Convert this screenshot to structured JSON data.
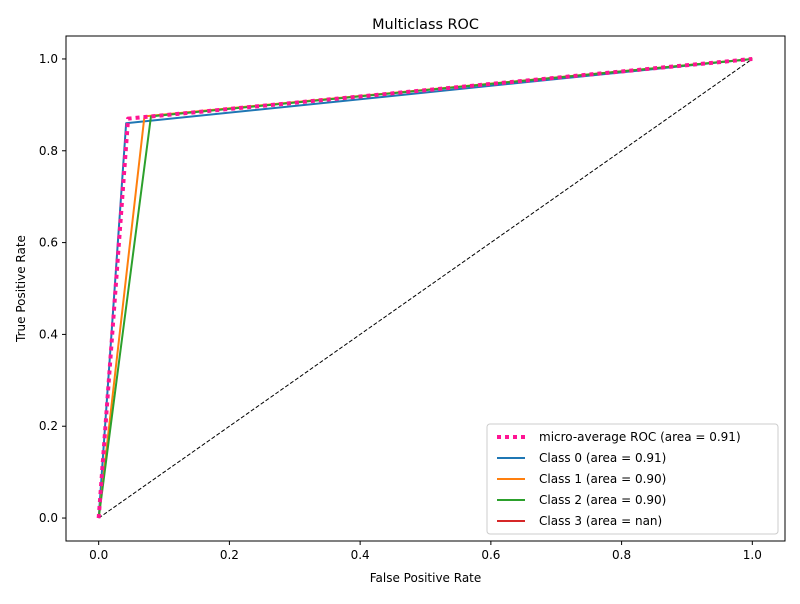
{
  "chart_data": {
    "type": "line",
    "title": "Multiclass ROC",
    "xlabel": "False Positive Rate",
    "ylabel": "True Positive Rate",
    "xlim": [
      -0.05,
      1.05
    ],
    "ylim": [
      -0.05,
      1.05
    ],
    "xticks": [
      "0.0",
      "0.2",
      "0.4",
      "0.6",
      "0.8",
      "1.0"
    ],
    "yticks": [
      "0.0",
      "0.2",
      "0.4",
      "0.6",
      "0.8",
      "1.0"
    ],
    "grid": false,
    "legend_position": "lower right",
    "series": [
      {
        "name": "micro-average ROC (area = 0.91)",
        "color": "#ff1493",
        "style": "dotted",
        "x": [
          0.0,
          0.045,
          1.0
        ],
        "y": [
          0.0,
          0.87,
          1.0
        ]
      },
      {
        "name": "Class 0 (area = 0.91)",
        "color": "#1f77b4",
        "style": "solid",
        "x": [
          0.0,
          0.042,
          1.0
        ],
        "y": [
          0.0,
          0.86,
          1.0
        ]
      },
      {
        "name": "Class 1 (area = 0.90)",
        "color": "#ff7f0e",
        "style": "solid",
        "x": [
          0.0,
          0.07,
          1.0
        ],
        "y": [
          0.0,
          0.875,
          1.0
        ]
      },
      {
        "name": "Class 2 (area = 0.90)",
        "color": "#2ca02c",
        "style": "solid",
        "x": [
          0.0,
          0.08,
          1.0
        ],
        "y": [
          0.0,
          0.875,
          1.0
        ]
      },
      {
        "name": "Class 3 (area = nan)",
        "color": "#d62728",
        "style": "solid",
        "x": [],
        "y": []
      }
    ],
    "reference_line": {
      "color": "#000000",
      "style": "dashed",
      "x": [
        0.0,
        1.0
      ],
      "y": [
        0.0,
        1.0
      ]
    }
  }
}
